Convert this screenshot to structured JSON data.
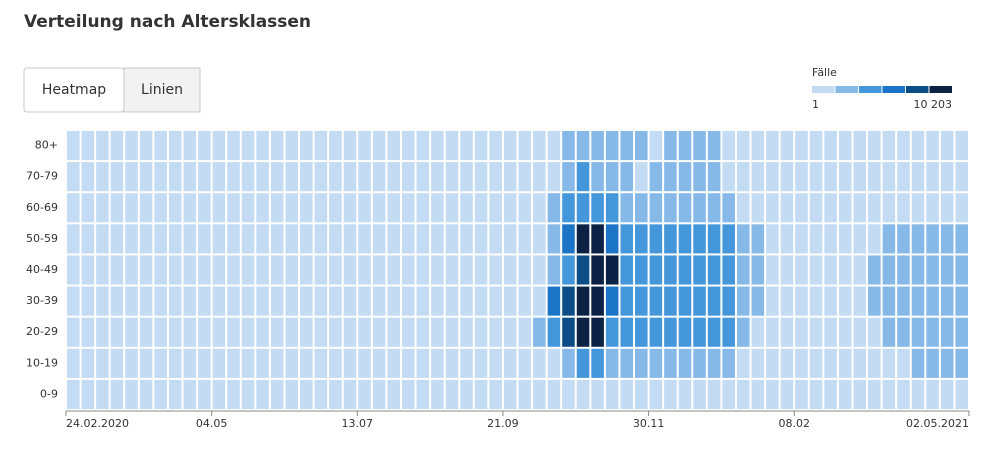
{
  "chart_data": {
    "type": "heatmap",
    "title": "Verteilung nach Altersklassen",
    "tabs": [
      "Heatmap",
      "Linien"
    ],
    "active_tab": 0,
    "legend": {
      "title": "Fälle",
      "min": 1,
      "max": {
        "value": 10203,
        "label": "10 203"
      },
      "colors": [
        "#c3dbf3",
        "#86b9e8",
        "#4597dc",
        "#1b74c5",
        "#0c4d88",
        "#0b2244"
      ]
    },
    "categories": [
      "24.02.2020",
      null,
      null,
      null,
      null,
      null,
      null,
      null,
      null,
      null,
      "04.05",
      null,
      null,
      null,
      null,
      null,
      null,
      null,
      null,
      null,
      "13.07",
      null,
      null,
      null,
      null,
      null,
      null,
      null,
      null,
      null,
      "21.09",
      null,
      null,
      null,
      null,
      null,
      null,
      null,
      null,
      null,
      "30.11",
      null,
      null,
      null,
      null,
      null,
      null,
      null,
      null,
      null,
      "08.02",
      null,
      null,
      null,
      null,
      null,
      null,
      null,
      null,
      null,
      null,
      "02.05.2021"
    ],
    "rows": [
      {
        "label": "80+",
        "values": [
          500,
          500,
          500,
          500,
          500,
          500,
          500,
          500,
          500,
          500,
          500,
          500,
          500,
          500,
          500,
          500,
          500,
          500,
          500,
          500,
          500,
          500,
          500,
          500,
          500,
          500,
          500,
          500,
          500,
          500,
          500,
          500,
          500,
          500,
          2500,
          2500,
          2500,
          2500,
          2500,
          2500,
          500,
          2500,
          2500,
          2500,
          2500,
          500,
          500,
          500,
          500,
          500,
          500,
          500,
          500,
          500,
          500,
          500,
          500,
          500,
          500,
          500,
          500,
          500
        ]
      },
      {
        "label": "70-79",
        "values": [
          500,
          500,
          500,
          500,
          500,
          500,
          500,
          500,
          500,
          500,
          500,
          500,
          500,
          500,
          500,
          500,
          500,
          500,
          500,
          500,
          500,
          500,
          500,
          500,
          500,
          500,
          500,
          500,
          500,
          500,
          500,
          500,
          500,
          500,
          2500,
          4200,
          2500,
          2500,
          2500,
          500,
          2500,
          2500,
          2500,
          2500,
          2500,
          500,
          500,
          500,
          500,
          500,
          500,
          500,
          500,
          500,
          500,
          500,
          500,
          500,
          500,
          500,
          500,
          500
        ]
      },
      {
        "label": "60-69",
        "values": [
          500,
          500,
          500,
          500,
          500,
          500,
          500,
          500,
          500,
          500,
          500,
          500,
          500,
          500,
          500,
          500,
          500,
          500,
          500,
          500,
          500,
          500,
          500,
          500,
          500,
          500,
          500,
          500,
          500,
          500,
          500,
          500,
          500,
          2500,
          4200,
          4200,
          4200,
          4200,
          2500,
          2500,
          2500,
          2500,
          2500,
          2500,
          2500,
          2500,
          500,
          500,
          500,
          500,
          500,
          500,
          500,
          500,
          500,
          500,
          500,
          500,
          500,
          500,
          500,
          500
        ]
      },
      {
        "label": "50-59",
        "values": [
          500,
          500,
          500,
          500,
          500,
          500,
          500,
          500,
          500,
          500,
          500,
          500,
          500,
          500,
          500,
          500,
          500,
          500,
          500,
          500,
          500,
          500,
          500,
          500,
          500,
          500,
          500,
          500,
          500,
          500,
          500,
          500,
          500,
          2500,
          5900,
          9500,
          9500,
          5900,
          4200,
          4200,
          4200,
          4200,
          4200,
          4200,
          4200,
          4200,
          2500,
          2500,
          500,
          500,
          500,
          500,
          500,
          500,
          500,
          500,
          2500,
          2500,
          2500,
          2500,
          2500,
          2500
        ]
      },
      {
        "label": "40-49",
        "values": [
          500,
          500,
          500,
          500,
          500,
          500,
          500,
          500,
          500,
          500,
          500,
          500,
          500,
          500,
          500,
          500,
          500,
          500,
          500,
          500,
          500,
          500,
          500,
          500,
          500,
          500,
          500,
          500,
          500,
          500,
          500,
          500,
          500,
          2500,
          4200,
          7600,
          9500,
          9500,
          4200,
          4200,
          4200,
          4200,
          4200,
          4200,
          4200,
          4200,
          2500,
          2500,
          500,
          500,
          500,
          500,
          500,
          500,
          500,
          2500,
          2500,
          2500,
          2500,
          2500,
          2500,
          2500
        ]
      },
      {
        "label": "30-39",
        "values": [
          500,
          500,
          500,
          500,
          500,
          500,
          500,
          500,
          500,
          500,
          500,
          500,
          500,
          500,
          500,
          500,
          500,
          500,
          500,
          500,
          500,
          500,
          500,
          500,
          500,
          500,
          500,
          500,
          500,
          500,
          500,
          500,
          500,
          5900,
          7600,
          9500,
          9500,
          5900,
          4200,
          4200,
          4200,
          4200,
          4200,
          4200,
          4200,
          4200,
          2500,
          2500,
          500,
          500,
          500,
          500,
          500,
          500,
          500,
          2500,
          2500,
          2500,
          2500,
          2500,
          2500,
          2500
        ]
      },
      {
        "label": "20-29",
        "values": [
          500,
          500,
          500,
          500,
          500,
          500,
          500,
          500,
          500,
          500,
          500,
          500,
          500,
          500,
          500,
          500,
          500,
          500,
          500,
          500,
          500,
          500,
          500,
          500,
          500,
          500,
          500,
          500,
          500,
          500,
          500,
          500,
          2500,
          4200,
          7600,
          9500,
          9500,
          4200,
          4200,
          4200,
          4200,
          4200,
          4200,
          4200,
          4200,
          4200,
          2500,
          500,
          500,
          500,
          500,
          500,
          500,
          500,
          500,
          500,
          2500,
          2500,
          2500,
          2500,
          2500,
          2500
        ]
      },
      {
        "label": "10-19",
        "values": [
          500,
          500,
          500,
          500,
          500,
          500,
          500,
          500,
          500,
          500,
          500,
          500,
          500,
          500,
          500,
          500,
          500,
          500,
          500,
          500,
          500,
          500,
          500,
          500,
          500,
          500,
          500,
          500,
          500,
          500,
          500,
          500,
          500,
          500,
          2500,
          4200,
          4200,
          2500,
          2500,
          2500,
          2500,
          2500,
          2500,
          2500,
          2500,
          2500,
          500,
          500,
          500,
          500,
          500,
          500,
          500,
          500,
          500,
          500,
          500,
          500,
          2500,
          2500,
          2500,
          2500
        ]
      },
      {
        "label": "0-9",
        "values": [
          500,
          500,
          500,
          500,
          500,
          500,
          500,
          500,
          500,
          500,
          500,
          500,
          500,
          500,
          500,
          500,
          500,
          500,
          500,
          500,
          500,
          500,
          500,
          500,
          500,
          500,
          500,
          500,
          500,
          500,
          500,
          500,
          500,
          500,
          500,
          500,
          500,
          500,
          500,
          500,
          500,
          500,
          500,
          500,
          500,
          500,
          500,
          500,
          500,
          500,
          500,
          500,
          500,
          500,
          500,
          500,
          500,
          500,
          500,
          500,
          500,
          500
        ]
      }
    ]
  }
}
